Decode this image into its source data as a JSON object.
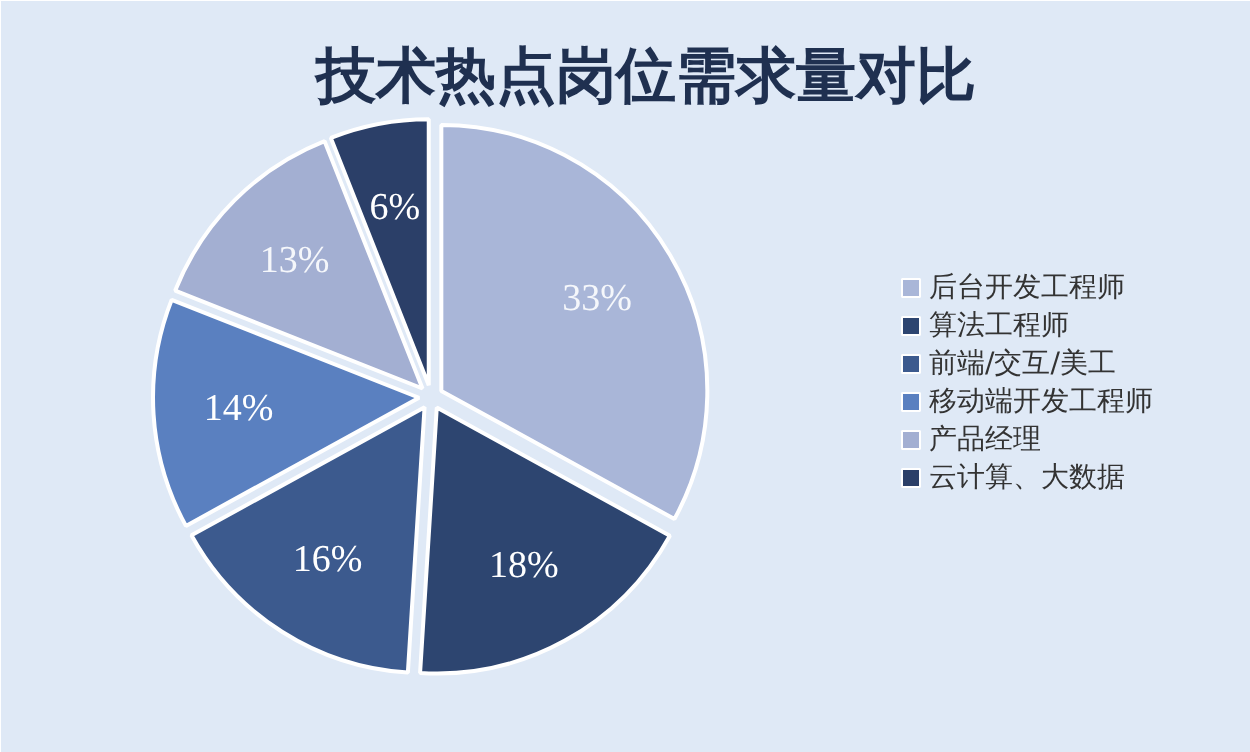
{
  "chart_data": {
    "type": "pie",
    "title": "技术热点岗位需求量对比",
    "categories": [
      "后台开发工程师",
      "算法工程师",
      "前端/交互/美工",
      "移动端开发工程师",
      "产品经理",
      "云计算、大数据"
    ],
    "values": [
      33,
      18,
      16,
      14,
      13,
      6
    ],
    "value_labels": [
      "33%",
      "18%",
      "16%",
      "14%",
      "13%",
      "6%"
    ],
    "colors": [
      "#a9b6d8",
      "#2d4570",
      "#3c5a8e",
      "#5a80c0",
      "#a3afd2",
      "#2b3f68"
    ],
    "legend": "right"
  }
}
